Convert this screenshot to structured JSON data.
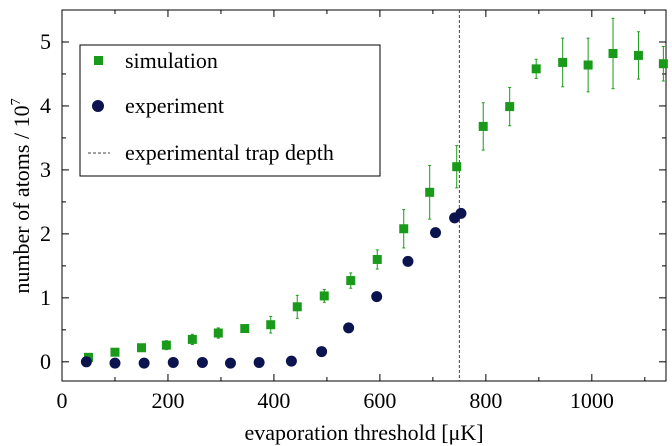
{
  "chart_data": {
    "type": "scatter",
    "title": "",
    "xlabel": "evaporation threshold [μK]",
    "ylabel": "number of atoms / 10",
    "ylabel_exponent": "7",
    "xlim": [
      0,
      1140
    ],
    "ylim": [
      -0.3,
      5.5
    ],
    "x_ticks": [
      0,
      200,
      400,
      600,
      800,
      1000
    ],
    "y_ticks": [
      0,
      1,
      2,
      3,
      4,
      5
    ],
    "grid": false,
    "legend_position": "top-left",
    "series": [
      {
        "name": "simulation",
        "marker": "square",
        "color": "#1a9a1a",
        "x": [
          50,
          100,
          150,
          197,
          246,
          295,
          345,
          394,
          444,
          495,
          545,
          595,
          645,
          694,
          745,
          795,
          845,
          895,
          945,
          993,
          1040,
          1088,
          1135
        ],
        "y": [
          0.07,
          0.15,
          0.22,
          0.26,
          0.35,
          0.45,
          0.52,
          0.58,
          0.86,
          1.03,
          1.27,
          1.6,
          2.08,
          2.65,
          3.05,
          3.68,
          3.99,
          4.58,
          4.68,
          4.64,
          4.82,
          4.79,
          4.66
        ],
        "err": [
          0.03,
          0.04,
          0.05,
          0.07,
          0.08,
          0.08,
          0.05,
          0.13,
          0.18,
          0.1,
          0.12,
          0.15,
          0.3,
          0.42,
          0.33,
          0.37,
          0.3,
          0.15,
          0.38,
          0.42,
          0.55,
          0.37,
          0.27
        ]
      },
      {
        "name": "experiment",
        "marker": "circle",
        "color": "#0c1450",
        "x": [
          46,
          100,
          155,
          210,
          265,
          318,
          372,
          433,
          490,
          541,
          594,
          653,
          705,
          741,
          753
        ],
        "y": [
          0.0,
          -0.02,
          -0.02,
          -0.01,
          -0.01,
          -0.02,
          -0.01,
          0.01,
          0.16,
          0.53,
          1.02,
          1.57,
          2.02,
          2.25,
          2.32
        ],
        "err": []
      }
    ],
    "reference_line": {
      "name": "experimental trap depth",
      "x": 750,
      "style": "dashed",
      "color": "#444444"
    }
  }
}
